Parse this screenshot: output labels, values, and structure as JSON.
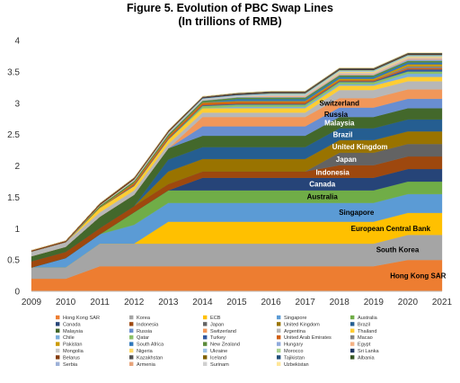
{
  "chart_data": {
    "type": "area",
    "stacked": true,
    "title": "Figure 5. Evolution of PBC Swap Lines",
    "subtitle": "(In trillions of RMB)",
    "x": [
      2009,
      2010,
      2011,
      2012,
      2013,
      2014,
      2015,
      2016,
      2017,
      2018,
      2019,
      2020,
      2021
    ],
    "ylim": [
      0,
      4
    ],
    "yticks": [
      0,
      0.5,
      1,
      1.5,
      2,
      2.5,
      3,
      3.5,
      4
    ],
    "grid": false,
    "legend_position": "bottom",
    "series": [
      {
        "name": "Hong Kong SAR",
        "color": "#ED7D31",
        "values": [
          0.2,
          0.2,
          0.4,
          0.4,
          0.4,
          0.4,
          0.4,
          0.4,
          0.4,
          0.4,
          0.4,
          0.5,
          0.5
        ]
      },
      {
        "name": "Korea",
        "color": "#A5A5A5",
        "values": [
          0.18,
          0.18,
          0.36,
          0.36,
          0.36,
          0.36,
          0.36,
          0.36,
          0.36,
          0.36,
          0.36,
          0.4,
          0.4
        ]
      },
      {
        "name": "ECB",
        "color": "#FFC000",
        "values": [
          0,
          0,
          0,
          0,
          0.35,
          0.35,
          0.35,
          0.35,
          0.35,
          0.35,
          0.35,
          0.35,
          0.35
        ]
      },
      {
        "name": "Singapore",
        "color": "#5B9BD5",
        "values": [
          0,
          0.15,
          0.15,
          0.3,
          0.3,
          0.3,
          0.3,
          0.3,
          0.3,
          0.3,
          0.3,
          0.3,
          0.3
        ]
      },
      {
        "name": "Australia",
        "color": "#70AD47",
        "values": [
          0,
          0,
          0,
          0.2,
          0.2,
          0.2,
          0.2,
          0.2,
          0.2,
          0.2,
          0.2,
          0.2,
          0.2
        ]
      },
      {
        "name": "Canada",
        "color": "#264478",
        "values": [
          0,
          0,
          0,
          0,
          0,
          0.2,
          0.2,
          0.2,
          0.2,
          0.2,
          0.2,
          0.2,
          0.2
        ]
      },
      {
        "name": "Indonesia",
        "color": "#9E480E",
        "values": [
          0.1,
          0.1,
          0.1,
          0.1,
          0.1,
          0.1,
          0.1,
          0.1,
          0.1,
          0.2,
          0.2,
          0.2,
          0.2
        ]
      },
      {
        "name": "Japan",
        "color": "#636363",
        "values": [
          0,
          0,
          0,
          0,
          0,
          0,
          0,
          0,
          0,
          0.2,
          0.2,
          0.2,
          0.2
        ]
      },
      {
        "name": "United Kingdom",
        "color": "#997300",
        "values": [
          0,
          0,
          0,
          0,
          0.2,
          0.2,
          0.2,
          0.2,
          0.2,
          0.2,
          0.2,
          0.2,
          0.2
        ]
      },
      {
        "name": "Brazil",
        "color": "#255E91",
        "values": [
          0,
          0,
          0,
          0,
          0.19,
          0.19,
          0.19,
          0.19,
          0.19,
          0.19,
          0.19,
          0.19,
          0.19
        ]
      },
      {
        "name": "Malaysia",
        "color": "#43682B",
        "values": [
          0.08,
          0.08,
          0.18,
          0.18,
          0.18,
          0.18,
          0.18,
          0.18,
          0.18,
          0.18,
          0.18,
          0.18,
          0.18
        ]
      },
      {
        "name": "Russia",
        "color": "#698ED0",
        "values": [
          0,
          0,
          0,
          0,
          0,
          0.15,
          0.15,
          0.15,
          0.15,
          0.15,
          0.15,
          0.15,
          0.15
        ]
      },
      {
        "name": "Switzerland",
        "color": "#F1975A",
        "values": [
          0,
          0,
          0,
          0,
          0,
          0.15,
          0.15,
          0.15,
          0.15,
          0.15,
          0.15,
          0.15,
          0.15
        ]
      },
      {
        "name": "Argentina",
        "color": "#B7B7B7",
        "values": [
          0.07,
          0.07,
          0.07,
          0.07,
          0.07,
          0.07,
          0.07,
          0.07,
          0.07,
          0.13,
          0.13,
          0.13,
          0.13
        ]
      },
      {
        "name": "Thailand",
        "color": "#FFCD33",
        "values": [
          0,
          0,
          0.07,
          0.07,
          0.07,
          0.07,
          0.07,
          0.07,
          0.07,
          0.07,
          0.07,
          0.07,
          0.07
        ]
      },
      {
        "name": "Chile",
        "color": "#7CAFDD",
        "values": [
          0,
          0,
          0,
          0,
          0,
          0,
          0.022,
          0.022,
          0.022,
          0.022,
          0.022,
          0.05,
          0.05
        ]
      },
      {
        "name": "Qatar",
        "color": "#8CC168",
        "values": [
          0,
          0,
          0,
          0,
          0,
          0.035,
          0.035,
          0.035,
          0.035,
          0.035,
          0.035,
          0.035,
          0.035
        ]
      },
      {
        "name": "Turkey",
        "color": "#335AA1",
        "values": [
          0,
          0,
          0,
          0.01,
          0.01,
          0.012,
          0.012,
          0.012,
          0.012,
          0.012,
          0.012,
          0.035,
          0.035
        ]
      },
      {
        "name": "United Arab Emirates",
        "color": "#D26012",
        "values": [
          0,
          0,
          0,
          0.035,
          0.035,
          0.035,
          0.035,
          0.035,
          0.035,
          0.02,
          0.02,
          0.02,
          0.02
        ]
      },
      {
        "name": "Macao",
        "color": "#848484",
        "values": [
          0,
          0,
          0,
          0,
          0,
          0,
          0,
          0,
          0,
          0,
          0,
          0.03,
          0.03
        ]
      },
      {
        "name": "Pakistan",
        "color": "#CC9A00",
        "values": [
          0,
          0,
          0.01,
          0.01,
          0.01,
          0.01,
          0.01,
          0.01,
          0.01,
          0.02,
          0.02,
          0.03,
          0.03
        ]
      },
      {
        "name": "South Africa",
        "color": "#2F77BA",
        "values": [
          0,
          0,
          0,
          0,
          0,
          0,
          0.03,
          0.03,
          0.03,
          0.03,
          0.03,
          0.03,
          0.03
        ]
      },
      {
        "name": "New Zealand",
        "color": "#5A8A39",
        "values": [
          0,
          0,
          0.025,
          0.025,
          0.025,
          0.025,
          0.025,
          0.025,
          0.025,
          0.025,
          0.025,
          0.025,
          0.025
        ]
      },
      {
        "name": "Hungary",
        "color": "#8FAADC",
        "values": [
          0,
          0,
          0,
          0,
          0.01,
          0.01,
          0.01,
          0.01,
          0.01,
          0.01,
          0.01,
          0.02,
          0.02
        ]
      },
      {
        "name": "Egypt",
        "color": "#F4B183",
        "values": [
          0,
          0,
          0,
          0,
          0,
          0,
          0,
          0.018,
          0.018,
          0.018,
          0.018,
          0.018,
          0.018
        ]
      },
      {
        "name": "Mongolia",
        "color": "#C9C9C9",
        "values": [
          0.005,
          0.005,
          0.01,
          0.01,
          0.01,
          0.015,
          0.015,
          0.015,
          0.015,
          0.015,
          0.015,
          0.015,
          0.015
        ]
      },
      {
        "name": "Nigeria",
        "color": "#FFD966",
        "values": [
          0,
          0,
          0,
          0,
          0,
          0,
          0,
          0,
          0,
          0.015,
          0.015,
          0.015,
          0.015
        ]
      },
      {
        "name": "Ukraine",
        "color": "#9DC3E6",
        "values": [
          0,
          0,
          0,
          0.015,
          0.015,
          0.015,
          0.015,
          0.015,
          0.015,
          0.015,
          0.015,
          0.015,
          0.015
        ]
      },
      {
        "name": "Morocco",
        "color": "#A9D18E",
        "values": [
          0,
          0,
          0,
          0,
          0,
          0,
          0,
          0.01,
          0.01,
          0.01,
          0.01,
          0.01,
          0.01
        ]
      },
      {
        "name": "Sri Lanka",
        "color": "#203864",
        "values": [
          0,
          0,
          0,
          0,
          0,
          0.01,
          0.01,
          0.01,
          0.01,
          0.01,
          0.01,
          0.01,
          0.01
        ]
      },
      {
        "name": "Belarus",
        "color": "#843C0C",
        "values": [
          0.02,
          0.02,
          0.02,
          0.02,
          0.02,
          0.007,
          0.007,
          0.007,
          0.007,
          0.007,
          0.007,
          0.007,
          0.007
        ]
      },
      {
        "name": "Kazakhstan",
        "color": "#525252",
        "values": [
          0,
          0,
          0.007,
          0.007,
          0.007,
          0.007,
          0.007,
          0.007,
          0.007,
          0.007,
          0.007,
          0.007,
          0.007
        ]
      },
      {
        "name": "Iceland",
        "color": "#806000",
        "values": [
          0,
          0.0035,
          0.0035,
          0.0035,
          0.0035,
          0.0035,
          0.0035,
          0.0035,
          0.0035,
          0.0035,
          0.0035,
          0.0035,
          0.0035
        ]
      },
      {
        "name": "Tajikistan",
        "color": "#1F4E79",
        "values": [
          0,
          0,
          0,
          0,
          0,
          0,
          0.003,
          0.003,
          0.003,
          0.003,
          0.003,
          0.003,
          0.003
        ]
      },
      {
        "name": "Albania",
        "color": "#375623",
        "values": [
          0,
          0,
          0,
          0,
          0.002,
          0.002,
          0.002,
          0.002,
          0.002,
          0.002,
          0.002,
          0.002,
          0.002
        ]
      },
      {
        "name": "Serbia",
        "color": "#9DB1D8",
        "values": [
          0,
          0,
          0,
          0,
          0,
          0,
          0.0015,
          0.0015,
          0.0015,
          0.0015,
          0.0015,
          0.0015,
          0.0015
        ]
      },
      {
        "name": "Armenia",
        "color": "#E7A37A",
        "values": [
          0,
          0,
          0,
          0,
          0,
          0,
          0.001,
          0.001,
          0.001,
          0.001,
          0.001,
          0.001,
          0.001
        ]
      },
      {
        "name": "Surinam",
        "color": "#D0D0D0",
        "values": [
          0,
          0,
          0,
          0,
          0,
          0,
          0.001,
          0.001,
          0.001,
          0.001,
          0.001,
          0.001,
          0.001
        ]
      },
      {
        "name": "Uzbekistan",
        "color": "#FFE699",
        "values": [
          0,
          0,
          0,
          0.0007,
          0.0007,
          0.0007,
          0.0007,
          0.0007,
          0.0007,
          0.0007,
          0.0007,
          0.0007,
          0.0007
        ]
      }
    ],
    "area_labels": [
      {
        "text": "Hong Kong SAR",
        "series": "Hong Kong SAR",
        "x": 2020.3,
        "color": "#000000"
      },
      {
        "text": "South Korea",
        "series": "Korea",
        "x": 2019.7,
        "color": "#000000"
      },
      {
        "text": "European Central Bank",
        "series": "ECB",
        "x": 2019.5,
        "color": "#000000"
      },
      {
        "text": "Singapore",
        "series": "Singapore",
        "x": 2018.5,
        "color": "#000000"
      },
      {
        "text": "Australia",
        "series": "Australia",
        "x": 2017.5,
        "color": "#000000"
      },
      {
        "text": "Canada",
        "series": "Canada",
        "x": 2017.5,
        "color": "#FFFFFF"
      },
      {
        "text": "Indonesia",
        "series": "Indonesia",
        "x": 2017.8,
        "color": "#FFFFFF"
      },
      {
        "text": "Japan",
        "series": "Japan",
        "x": 2018.2,
        "color": "#FFFFFF"
      },
      {
        "text": "United Kingdom",
        "series": "United Kingdom",
        "x": 2018.6,
        "color": "#FFFFFF"
      },
      {
        "text": "Brazil",
        "series": "Brazil",
        "x": 2018.1,
        "color": "#FFFFFF"
      },
      {
        "text": "Malaysia",
        "series": "Malaysia",
        "x": 2018.0,
        "color": "#FFFFFF"
      },
      {
        "text": "Russia",
        "series": "Russia",
        "x": 2017.9,
        "color": "#000000"
      },
      {
        "text": "Switzerland",
        "series": "Switzerland",
        "x": 2018.0,
        "color": "#000000"
      }
    ]
  }
}
